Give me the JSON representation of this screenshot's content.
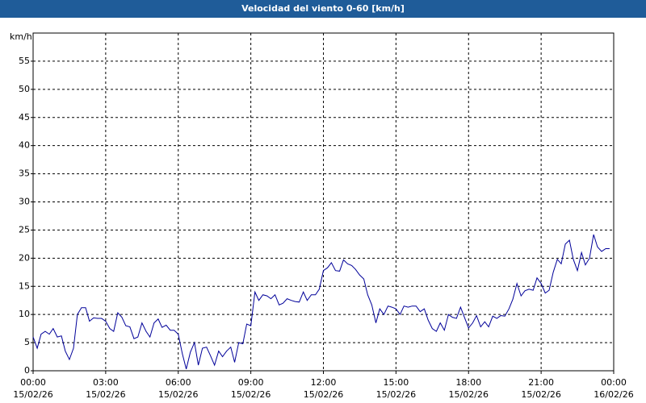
{
  "chart_data": {
    "type": "line",
    "title": "Velocidad del viento 0-60 [km/h]",
    "y_label": "km/h",
    "xlim": [
      0,
      24
    ],
    "ylim": [
      0,
      60
    ],
    "yticks": [
      0,
      5,
      10,
      15,
      20,
      25,
      30,
      35,
      40,
      45,
      50,
      55
    ],
    "xticks": [
      {
        "value": 0,
        "label": "00:00"
      },
      {
        "value": 3,
        "label": "03:00"
      },
      {
        "value": 6,
        "label": "06:00"
      },
      {
        "value": 9,
        "label": "09:00"
      },
      {
        "value": 12,
        "label": "12:00"
      },
      {
        "value": 15,
        "label": "15:00"
      },
      {
        "value": 18,
        "label": "18:00"
      },
      {
        "value": 21,
        "label": "21:00"
      },
      {
        "value": 24,
        "label": "00:00"
      }
    ],
    "xtick_dates": [
      "15/02/26",
      "15/02/26",
      "15/02/26",
      "15/02/26",
      "15/02/26",
      "15/02/26",
      "15/02/26",
      "15/02/26",
      "16/02/26"
    ],
    "grid": true,
    "x": [
      0,
      0.17,
      0.33,
      0.5,
      0.67,
      0.83,
      1,
      1.17,
      1.33,
      1.5,
      1.67,
      1.83,
      2,
      2.17,
      2.33,
      2.5,
      2.67,
      2.83,
      3,
      3.17,
      3.33,
      3.5,
      3.67,
      3.83,
      4,
      4.17,
      4.33,
      4.5,
      4.67,
      4.83,
      5,
      5.17,
      5.33,
      5.5,
      5.67,
      5.83,
      6,
      6.17,
      6.33,
      6.5,
      6.67,
      6.83,
      7,
      7.17,
      7.33,
      7.5,
      7.67,
      7.83,
      8,
      8.17,
      8.33,
      8.5,
      8.67,
      8.83,
      9,
      9.17,
      9.33,
      9.5,
      9.67,
      9.83,
      10,
      10.17,
      10.33,
      10.5,
      10.67,
      10.83,
      11,
      11.17,
      11.33,
      11.5,
      11.67,
      11.83,
      12,
      12.17,
      12.33,
      12.5,
      12.67,
      12.83,
      13,
      13.17,
      13.33,
      13.5,
      13.67,
      13.83,
      14,
      14.17,
      14.33,
      14.5,
      14.67,
      14.83,
      15,
      15.17,
      15.33,
      15.5,
      15.67,
      15.83,
      16,
      16.17,
      16.33,
      16.5,
      16.67,
      16.83,
      17,
      17.17,
      17.33,
      17.5,
      17.67,
      17.83,
      18,
      18.17,
      18.33,
      18.5,
      18.67,
      18.83,
      19,
      19.17,
      19.33,
      19.5,
      19.67,
      19.83,
      20,
      20.17,
      20.33,
      20.5,
      20.67,
      20.83,
      21,
      21.17,
      21.33,
      21.5,
      21.67,
      21.83,
      22,
      22.17,
      22.33,
      22.5,
      22.67,
      22.83,
      23,
      23.17,
      23.33,
      23.5,
      23.67,
      23.83
    ],
    "series": [
      {
        "name": "Velocidad del viento",
        "color": "#000099",
        "values": [
          6,
          4,
          6.5,
          7,
          6.5,
          7.5,
          6,
          6.2,
          3.5,
          2,
          4,
          10,
          11.2,
          11.2,
          8.8,
          9.4,
          9.3,
          9.3,
          8.8,
          7.5,
          7,
          10.3,
          9.5,
          8,
          7.8,
          5.7,
          6,
          8.5,
          7,
          6,
          8.5,
          9.2,
          7.7,
          8.1,
          7.2,
          7.2,
          6.5,
          3,
          0.3,
          3.3,
          5,
          1,
          4,
          4.2,
          2.7,
          1,
          3.5,
          2.5,
          3.5,
          4.2,
          1.5,
          5,
          4.8,
          8.3,
          8,
          14,
          12.5,
          13.5,
          13.3,
          12.8,
          13.5,
          11.7,
          12,
          12.8,
          12.5,
          12.3,
          12.2,
          14,
          12.5,
          13.5,
          13.5,
          14.5,
          17.8,
          18.3,
          19.2,
          17.8,
          17.7,
          19.7,
          19,
          18.7,
          18,
          17,
          16.3,
          13.5,
          11.7,
          8.5,
          11,
          10,
          11.5,
          11.3,
          11,
          10,
          11.5,
          11.3,
          11.5,
          11.5,
          10.5,
          11,
          9,
          7.5,
          7,
          8.5,
          7.2,
          10,
          9.5,
          9.3,
          11.3,
          9.5,
          7.6,
          8.5,
          9.8,
          7.8,
          8.7,
          7.8,
          9.7,
          9.3,
          9.8,
          9.7,
          11,
          12.7,
          15.5,
          13.3,
          14.2,
          14.5,
          14.3,
          16.5,
          15.5,
          13.8,
          14.3,
          17.5,
          19.8,
          19,
          22.5,
          23.2,
          19.8,
          17.8,
          21,
          18.8,
          20,
          24.2,
          22,
          21.2,
          21.7,
          21.7
        ]
      }
    ]
  }
}
